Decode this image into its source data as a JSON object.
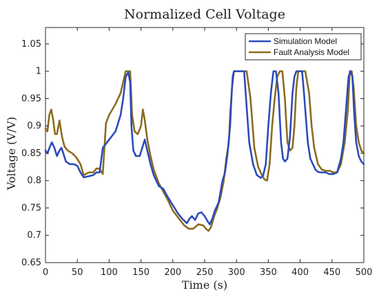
{
  "chart_data": {
    "type": "line",
    "title": "Normalized Cell Voltage",
    "xlabel": "Time (s)",
    "ylabel": "Voltage (V/V)",
    "xlim": [
      0,
      500
    ],
    "ylim": [
      0.65,
      1.08
    ],
    "xticks": [
      0,
      50,
      100,
      150,
      200,
      250,
      300,
      350,
      400,
      450,
      500
    ],
    "yticks": [
      0.65,
      0.7,
      0.75,
      0.8,
      0.85,
      0.9,
      0.95,
      1,
      1.05
    ],
    "xtick_labels": [
      "0",
      "50",
      "100",
      "150",
      "200",
      "250",
      "300",
      "350",
      "400",
      "450",
      "500"
    ],
    "ytick_labels": [
      "0.65",
      "0.7",
      "0.75",
      "0.8",
      "0.85",
      "0.9",
      "0.95",
      "1",
      "1.05"
    ],
    "grid": false,
    "legend_position": "top-right",
    "series": [
      {
        "name": "Simulation Model",
        "color": "#2b4bbb",
        "x": [
          0,
          3,
          7,
          10,
          14,
          18,
          22,
          25,
          28,
          32,
          38,
          45,
          50,
          55,
          60,
          68,
          75,
          80,
          85,
          90,
          100,
          110,
          118,
          122,
          126,
          130,
          133,
          135,
          138,
          142,
          148,
          152,
          156,
          160,
          165,
          170,
          178,
          185,
          192,
          200,
          208,
          215,
          222,
          226,
          230,
          235,
          240,
          245,
          250,
          255,
          258,
          262,
          266,
          272,
          278,
          282,
          286,
          290,
          292,
          294,
          296,
          300,
          305,
          310,
          312,
          315,
          320,
          326,
          332,
          338,
          342,
          346,
          350,
          354,
          358,
          362,
          366,
          370,
          373,
          376,
          380,
          384,
          388,
          391,
          394,
          397,
          400,
          403,
          406,
          412,
          416,
          420,
          424,
          428,
          432,
          436,
          440,
          446,
          452,
          458,
          464,
          468,
          472,
          476,
          479,
          482,
          485,
          488,
          492,
          496,
          500
        ],
        "y": [
          0.855,
          0.85,
          0.862,
          0.87,
          0.86,
          0.845,
          0.855,
          0.86,
          0.85,
          0.835,
          0.83,
          0.83,
          0.827,
          0.815,
          0.806,
          0.808,
          0.81,
          0.815,
          0.815,
          0.86,
          0.875,
          0.89,
          0.92,
          0.95,
          0.99,
          0.998,
          0.98,
          0.9,
          0.855,
          0.845,
          0.845,
          0.86,
          0.875,
          0.855,
          0.83,
          0.81,
          0.79,
          0.785,
          0.77,
          0.755,
          0.74,
          0.73,
          0.722,
          0.73,
          0.735,
          0.728,
          0.74,
          0.742,
          0.735,
          0.725,
          0.72,
          0.73,
          0.745,
          0.76,
          0.8,
          0.815,
          0.85,
          0.9,
          0.95,
          0.99,
          1.0,
          1.0,
          1.0,
          1.0,
          1.0,
          0.95,
          0.87,
          0.83,
          0.81,
          0.805,
          0.81,
          0.83,
          0.9,
          0.96,
          1.0,
          1.0,
          0.96,
          0.87,
          0.84,
          0.835,
          0.84,
          0.88,
          0.96,
          0.99,
          1.0,
          1.0,
          1.0,
          1.0,
          0.96,
          0.87,
          0.84,
          0.83,
          0.82,
          0.816,
          0.815,
          0.815,
          0.815,
          0.812,
          0.812,
          0.815,
          0.84,
          0.87,
          0.93,
          0.99,
          1.0,
          0.99,
          0.92,
          0.87,
          0.845,
          0.835,
          0.83
        ]
      },
      {
        "name": "Fault Analysis Model",
        "color": "#8b6b1f",
        "x": [
          0,
          3,
          6,
          9,
          12,
          15,
          18,
          22,
          26,
          30,
          35,
          42,
          48,
          55,
          60,
          68,
          75,
          80,
          85,
          90,
          95,
          100,
          110,
          118,
          122,
          126,
          130,
          133,
          136,
          140,
          145,
          150,
          153,
          156,
          160,
          165,
          170,
          178,
          185,
          192,
          200,
          210,
          218,
          225,
          232,
          240,
          248,
          252,
          256,
          260,
          265,
          270,
          275,
          280,
          284,
          288,
          290,
          293,
          296,
          300,
          305,
          310,
          313,
          316,
          322,
          328,
          334,
          340,
          344,
          348,
          352,
          356,
          360,
          364,
          368,
          372,
          376,
          380,
          384,
          388,
          391,
          394,
          397,
          400,
          404,
          408,
          414,
          418,
          422,
          428,
          434,
          440,
          446,
          452,
          458,
          464,
          470,
          475,
          478,
          481,
          484,
          488,
          492,
          496,
          500
        ],
        "y": [
          0.895,
          0.89,
          0.92,
          0.93,
          0.912,
          0.885,
          0.885,
          0.91,
          0.88,
          0.862,
          0.855,
          0.85,
          0.843,
          0.83,
          0.81,
          0.815,
          0.815,
          0.822,
          0.822,
          0.812,
          0.905,
          0.92,
          0.94,
          0.96,
          0.98,
          1.0,
          1.0,
          1.0,
          0.92,
          0.89,
          0.885,
          0.9,
          0.93,
          0.91,
          0.875,
          0.845,
          0.82,
          0.795,
          0.78,
          0.765,
          0.745,
          0.73,
          0.718,
          0.712,
          0.712,
          0.72,
          0.718,
          0.712,
          0.708,
          0.715,
          0.735,
          0.75,
          0.77,
          0.8,
          0.84,
          0.87,
          0.92,
          0.97,
          1.0,
          1.0,
          1.0,
          1.0,
          1.0,
          1.0,
          0.95,
          0.86,
          0.825,
          0.81,
          0.802,
          0.8,
          0.83,
          0.9,
          0.95,
          0.99,
          1.0,
          1.0,
          0.95,
          0.87,
          0.855,
          0.86,
          0.9,
          0.97,
          1.0,
          1.0,
          1.0,
          1.0,
          0.96,
          0.9,
          0.86,
          0.83,
          0.82,
          0.818,
          0.818,
          0.815,
          0.815,
          0.83,
          0.87,
          0.93,
          1.0,
          1.0,
          0.97,
          0.9,
          0.87,
          0.855,
          0.85
        ]
      }
    ]
  }
}
